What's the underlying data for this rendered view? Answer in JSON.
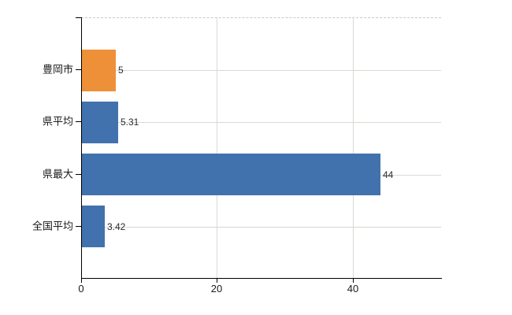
{
  "chart_data": {
    "type": "bar",
    "orientation": "horizontal",
    "title": "",
    "xlabel": "",
    "ylabel": "",
    "categories": [
      "豊岡市",
      "県平均",
      "県最大",
      "全国平均"
    ],
    "values": [
      5,
      5.31,
      44,
      3.42
    ],
    "value_labels": [
      "5",
      "5.31",
      "44",
      "3.42"
    ],
    "bar_colors": [
      "#ee9038",
      "#4272ad",
      "#4272ad",
      "#4272ad"
    ],
    "xlim": [
      0,
      53
    ],
    "x_ticks": [
      0,
      20,
      40
    ],
    "x_tick_labels": [
      "0",
      "20",
      "40"
    ],
    "grid": "on",
    "legend": "none",
    "colors": {
      "highlight_bar": "#ee9038",
      "default_bar": "#4272ad",
      "gridline": "#d5dbd2",
      "axis": "#000000",
      "plot_top_border": "#c9c9c9",
      "text": "#1a1a1a",
      "background": "#ffffff"
    }
  }
}
